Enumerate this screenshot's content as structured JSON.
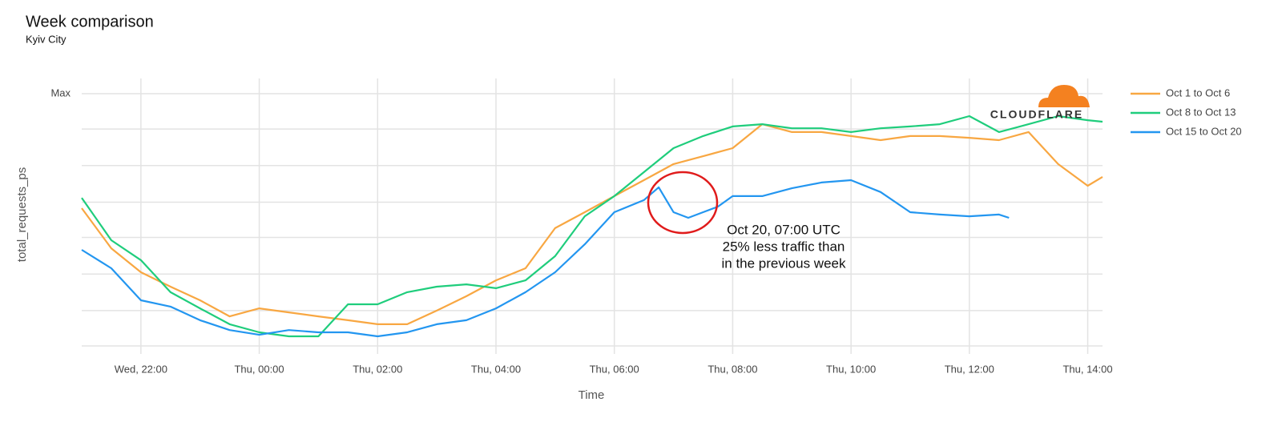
{
  "chart_data": {
    "type": "line",
    "title": "Week comparison",
    "subtitle": "Kyiv City",
    "x_label": "Time",
    "y_label": "total_requests_ps",
    "logo": "CLOUDFLARE",
    "annotation": [
      "Oct 20, 07:00 UTC",
      "25% less traffic than",
      "in the previous week"
    ],
    "xlim": [
      21,
      38.25
    ],
    "ylim": [
      0,
      100
    ],
    "xticks": [
      {
        "value": 22,
        "label": "Wed, 22:00"
      },
      {
        "value": 24,
        "label": "Thu, 00:00"
      },
      {
        "value": 26,
        "label": "Thu, 02:00"
      },
      {
        "value": 28,
        "label": "Thu, 04:00"
      },
      {
        "value": 30,
        "label": "Thu, 06:00"
      },
      {
        "value": 32,
        "label": "Thu, 08:00"
      },
      {
        "value": 34,
        "label": "Thu, 10:00"
      },
      {
        "value": 36,
        "label": "Thu, 12:00"
      },
      {
        "value": 38,
        "label": "Thu, 14:00"
      }
    ],
    "yticks": [
      {
        "value": 100,
        "label": "Max"
      },
      {
        "value": 86,
        "label": null
      },
      {
        "value": 71.5,
        "label": null
      },
      {
        "value": 57,
        "label": null
      },
      {
        "value": 43,
        "label": null
      },
      {
        "value": 28.5,
        "label": null
      },
      {
        "value": 14,
        "label": null
      },
      {
        "value": 0,
        "label": null
      }
    ],
    "grid": true,
    "legend": "right",
    "series": [
      {
        "name": "Oct 1 to Oct 6",
        "color": "#f8a742",
        "x": [
          21,
          21.5,
          22,
          22.5,
          23,
          23.5,
          24,
          24.5,
          25,
          25.5,
          26,
          26.5,
          27,
          27.5,
          28,
          28.5,
          29,
          29.5,
          30,
          30.5,
          31,
          31.5,
          32,
          32.5,
          33,
          33.5,
          34,
          34.5,
          35,
          35.5,
          36,
          36.5,
          37,
          37.5,
          38,
          38.25
        ],
        "values": [
          54.6,
          38.7,
          29.2,
          23.5,
          18.1,
          11.7,
          14.9,
          13.3,
          11.7,
          10.2,
          8.6,
          8.6,
          14.0,
          19.7,
          26.0,
          30.8,
          46.7,
          53.0,
          59.4,
          65.7,
          72.1,
          75.2,
          78.4,
          87.9,
          84.8,
          84.8,
          83.2,
          81.6,
          83.2,
          83.2,
          82.5,
          81.6,
          84.8,
          72.1,
          63.5,
          67.0
        ]
      },
      {
        "name": "Oct 8 to Oct 13",
        "color": "#1fcd7c",
        "x": [
          21,
          21.5,
          22,
          22.5,
          23,
          23.5,
          24,
          24.5,
          25,
          25.5,
          26,
          26.5,
          27,
          27.5,
          28,
          28.5,
          29,
          29.5,
          30,
          30.5,
          31,
          31.5,
          32,
          32.5,
          33,
          33.5,
          34,
          34.5,
          35,
          35.5,
          36,
          36.5,
          37,
          37.5,
          38,
          38.25
        ],
        "values": [
          58.7,
          41.9,
          34.0,
          21.3,
          14.9,
          8.6,
          5.4,
          3.8,
          3.8,
          16.5,
          16.5,
          21.3,
          23.5,
          24.4,
          22.9,
          26.0,
          35.6,
          51.4,
          59.4,
          68.9,
          78.4,
          83.2,
          87.0,
          87.9,
          86.3,
          86.3,
          84.8,
          86.3,
          87.0,
          87.9,
          91.1,
          84.8,
          87.9,
          91.1,
          89.5,
          88.9
        ]
      },
      {
        "name": "Oct 15 to Oct 20",
        "color": "#2396f0",
        "x": [
          21,
          21.5,
          22,
          22.5,
          23,
          23.5,
          24,
          24.5,
          25,
          25.5,
          26,
          26.5,
          27,
          27.5,
          28,
          28.5,
          29,
          29.5,
          30,
          30.5,
          30.75,
          31,
          31.25,
          31.5,
          31.75,
          32,
          32.5,
          33,
          33.5,
          34,
          34.5,
          35,
          35.5,
          36,
          36.5,
          36.67
        ],
        "values": [
          38.1,
          30.8,
          18.1,
          15.6,
          10.2,
          6.3,
          4.4,
          6.3,
          5.4,
          5.4,
          3.8,
          5.4,
          8.6,
          10.2,
          14.9,
          21.3,
          29.2,
          40.3,
          53.0,
          57.8,
          62.9,
          53.0,
          50.8,
          53.0,
          55.2,
          59.4,
          59.4,
          62.5,
          64.8,
          65.7,
          61.0,
          53.0,
          52.1,
          51.4,
          52.1,
          50.8
        ]
      }
    ]
  }
}
